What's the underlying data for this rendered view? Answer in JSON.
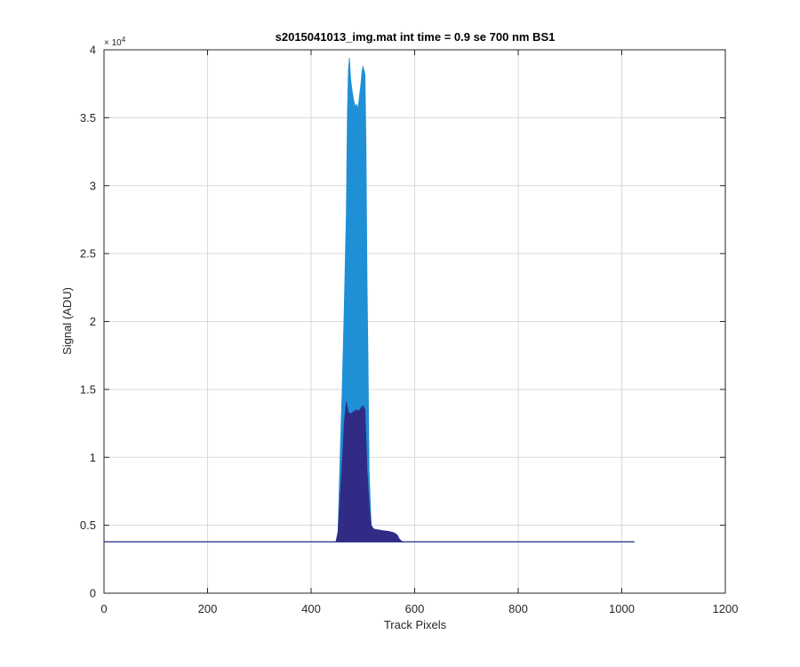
{
  "chart_data": {
    "type": "area",
    "title": "s2015041013_img.mat int time = 0.9 se  700 nm BS1",
    "xlabel": "Track Pixels",
    "ylabel": "Signal (ADU)",
    "xlim": [
      0,
      1200
    ],
    "ylim": [
      0,
      40000
    ],
    "xticks": [
      0,
      200,
      400,
      600,
      800,
      1000,
      1200
    ],
    "yticks": [
      0,
      5000,
      10000,
      15000,
      20000,
      25000,
      30000,
      35000,
      40000
    ],
    "ytick_labels": [
      "0",
      "0.5",
      "1",
      "1.5",
      "2",
      "2.5",
      "3",
      "3.5",
      "4"
    ],
    "y_exponent_label": "× 10",
    "y_exponent_power": "4",
    "grid": true,
    "series": [
      {
        "color": "#1f8fd6",
        "baseline_level": 3780,
        "baseline_extent": [
          0,
          1024
        ],
        "x": [
          0,
          448,
          452,
          456,
          460,
          464,
          468,
          470,
          472,
          474,
          476,
          478,
          480,
          482,
          484,
          486,
          488,
          490,
          492,
          494,
          496,
          498,
          500,
          502,
          504,
          506,
          508,
          510,
          512,
          516,
          520,
          524,
          528,
          532,
          540,
          550,
          560,
          566,
          570,
          574,
          578,
          1024
        ],
        "y": [
          3780,
          3780,
          4500,
          10000,
          15000,
          21000,
          28000,
          35000,
          38500,
          39400,
          38000,
          37300,
          36800,
          36300,
          36000,
          35800,
          36000,
          35600,
          36100,
          36800,
          37400,
          38300,
          38800,
          38500,
          38200,
          33000,
          23000,
          17000,
          9000,
          5000,
          4700,
          4650,
          4600,
          4600,
          4550,
          4500,
          4400,
          4300,
          4000,
          3850,
          3780,
          3780
        ]
      },
      {
        "color": "#312b85",
        "baseline_level": 3780,
        "baseline_extent": [
          0,
          1024
        ],
        "x": [
          0,
          448,
          452,
          456,
          460,
          464,
          468,
          472,
          476,
          480,
          484,
          488,
          492,
          496,
          500,
          504,
          508,
          512,
          516,
          520,
          524,
          532,
          540,
          550,
          560,
          566,
          570,
          574,
          578,
          1024
        ],
        "y": [
          3780,
          3780,
          4500,
          7000,
          9500,
          12500,
          14100,
          13300,
          13200,
          13300,
          13400,
          13500,
          13400,
          13600,
          13800,
          13500,
          9000,
          6500,
          5000,
          4750,
          4700,
          4650,
          4600,
          4550,
          4450,
          4300,
          4000,
          3850,
          3780,
          3780
        ]
      }
    ]
  }
}
